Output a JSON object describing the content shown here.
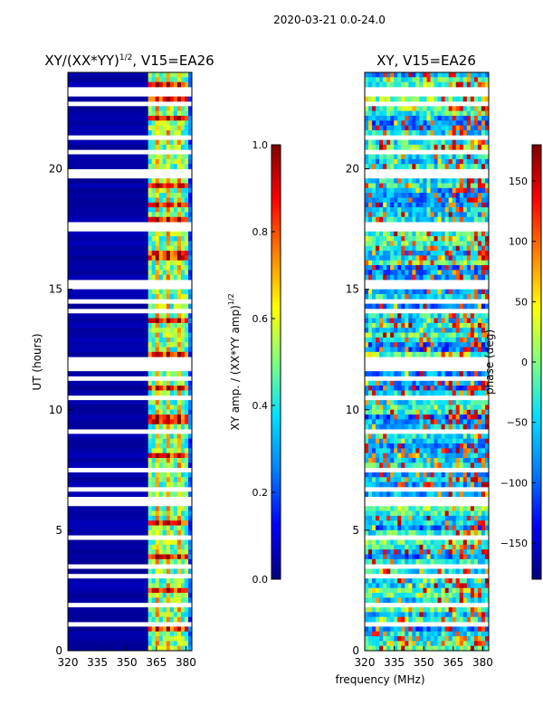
{
  "figure": {
    "suptitle": "2020-03-21 0.0-24.0",
    "xlabel": "frequency (MHz)"
  },
  "colormap": [
    "#00007f",
    "#0000ff",
    "#0080ff",
    "#00e0ff",
    "#7fff7f",
    "#ffff00",
    "#ff8000",
    "#ff0000",
    "#7f0000"
  ],
  "chart_data": [
    {
      "type": "heatmap",
      "title": "XY/(XX*YY)^1/2, V15=EA26",
      "title_main": "XY/(XX*YY)",
      "title_sup": "1/2",
      "title_rest": ", V15=EA26",
      "xlabel": "frequency (MHz)",
      "ylabel": "UT (hours)",
      "xlim": [
        320,
        383
      ],
      "ylim": [
        0,
        24
      ],
      "xticks": [
        320,
        335,
        350,
        365,
        380
      ],
      "yticks": [
        0,
        5,
        10,
        15,
        20
      ],
      "pattern": "normalized XY amplitude: near 0 below ~360 MHz, enhanced (0.4-0.9) at ~361-381 MHz with periodic bright blocks; many horizontal blanked (white) rows",
      "colorbar": {
        "label": "XY amp. / (XX*YY amp)^1/2",
        "label_main": "XY amp. / (XX*YY amp)",
        "label_sup": "1/2",
        "ticks": [
          0.0,
          0.2,
          0.4,
          0.6,
          0.8,
          1.0
        ],
        "tick_labels": [
          "0.0",
          "0.2",
          "0.4",
          "0.6",
          "0.8",
          "1.0"
        ],
        "range": [
          0,
          1
        ]
      }
    },
    {
      "type": "heatmap",
      "title": "XY, V15=EA26",
      "xlabel": "frequency (MHz)",
      "ylabel": "",
      "xlim": [
        320,
        383
      ],
      "ylim": [
        0,
        24
      ],
      "xticks": [
        320,
        335,
        350,
        365,
        380
      ],
      "yticks": [
        0,
        5,
        10,
        15,
        20
      ],
      "pattern": "XY phase in degrees, mostly -100 to 0 (cyan/blue) with noisy red/orange/yellow streaks, many horizontal blanked rows",
      "colorbar": {
        "label": "phase (deg)",
        "ticks": [
          -150,
          -100,
          -50,
          0,
          50,
          100,
          150
        ],
        "tick_labels": [
          "−150",
          "−100",
          "−50",
          "0",
          "50",
          "100",
          "150"
        ],
        "range": [
          -180,
          180
        ]
      }
    }
  ]
}
